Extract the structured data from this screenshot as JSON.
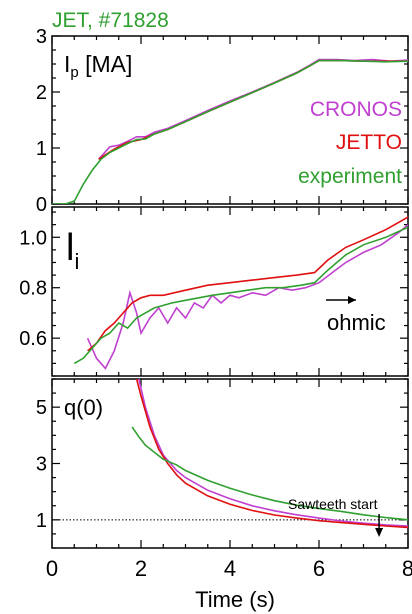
{
  "figure_title": "JET, #71828",
  "colors": {
    "cronos": "#c040d0",
    "jetto": "#e01010",
    "experiment": "#30a030",
    "axis": "#000000",
    "ref": "#000000"
  },
  "chart_data": [
    {
      "type": "line",
      "panel_label": "I",
      "panel_label_sub": "p",
      "panel_label_rest": " [MA]",
      "xlim": [
        0,
        8
      ],
      "ylim": [
        0,
        3
      ],
      "yticks": [
        "0",
        "1",
        "2",
        "3"
      ],
      "legend": [
        "CRONOS",
        "JETTO",
        "experiment"
      ],
      "legend_position": "right",
      "series": [
        {
          "name": "CRONOS",
          "color": "#c040d0",
          "points": [
            [
              1.05,
              0.8
            ],
            [
              1.3,
              1.02
            ],
            [
              1.5,
              1.05
            ],
            [
              1.7,
              1.12
            ],
            [
              1.9,
              1.2
            ],
            [
              2.1,
              1.2
            ],
            [
              2.3,
              1.28
            ],
            [
              2.6,
              1.35
            ],
            [
              3.0,
              1.49
            ],
            [
              3.5,
              1.67
            ],
            [
              4.0,
              1.84
            ],
            [
              4.5,
              2.0
            ],
            [
              5.0,
              2.17
            ],
            [
              5.5,
              2.35
            ],
            [
              5.8,
              2.48
            ],
            [
              6.0,
              2.58
            ],
            [
              6.4,
              2.58
            ],
            [
              6.8,
              2.56
            ],
            [
              7.2,
              2.58
            ],
            [
              7.6,
              2.55
            ],
            [
              8.0,
              2.57
            ]
          ]
        },
        {
          "name": "JETTO",
          "color": "#e01010",
          "points": [
            [
              1.05,
              0.8
            ],
            [
              1.4,
              0.98
            ],
            [
              1.7,
              1.1
            ],
            [
              2.0,
              1.15
            ],
            [
              2.3,
              1.25
            ],
            [
              2.6,
              1.33
            ],
            [
              3.0,
              1.47
            ],
            [
              3.5,
              1.65
            ],
            [
              4.0,
              1.82
            ],
            [
              4.5,
              1.99
            ],
            [
              5.0,
              2.16
            ],
            [
              5.5,
              2.34
            ],
            [
              5.8,
              2.47
            ],
            [
              6.0,
              2.56
            ],
            [
              6.5,
              2.56
            ],
            [
              7.0,
              2.55
            ],
            [
              7.5,
              2.55
            ],
            [
              8.0,
              2.55
            ]
          ]
        },
        {
          "name": "experiment",
          "color": "#30a030",
          "points": [
            [
              0.0,
              0.0
            ],
            [
              0.3,
              0.0
            ],
            [
              0.5,
              0.05
            ],
            [
              0.7,
              0.35
            ],
            [
              0.9,
              0.6
            ],
            [
              1.1,
              0.8
            ],
            [
              1.3,
              0.92
            ],
            [
              1.5,
              1.0
            ],
            [
              1.7,
              1.08
            ],
            [
              1.9,
              1.15
            ],
            [
              2.1,
              1.16
            ],
            [
              2.3,
              1.25
            ],
            [
              2.6,
              1.33
            ],
            [
              3.0,
              1.47
            ],
            [
              3.5,
              1.65
            ],
            [
              4.0,
              1.82
            ],
            [
              4.5,
              1.99
            ],
            [
              5.0,
              2.16
            ],
            [
              5.5,
              2.34
            ],
            [
              5.8,
              2.47
            ],
            [
              6.0,
              2.56
            ],
            [
              6.5,
              2.56
            ],
            [
              7.0,
              2.55
            ],
            [
              7.5,
              2.54
            ],
            [
              8.0,
              2.55
            ]
          ]
        }
      ]
    },
    {
      "type": "line",
      "panel_label": "l",
      "panel_label_sub": "i",
      "panel_label_rest": "",
      "xlim": [
        0,
        8
      ],
      "ylim": [
        0.45,
        1.12
      ],
      "yticks": [
        "0.6",
        "0.8",
        "1.0"
      ],
      "annotation": "ohmic",
      "series": [
        {
          "name": "CRONOS",
          "color": "#c040d0",
          "points": [
            [
              0.8,
              0.6
            ],
            [
              1.0,
              0.52
            ],
            [
              1.2,
              0.48
            ],
            [
              1.4,
              0.55
            ],
            [
              1.6,
              0.66
            ],
            [
              1.75,
              0.78
            ],
            [
              1.9,
              0.7
            ],
            [
              2.0,
              0.62
            ],
            [
              2.2,
              0.68
            ],
            [
              2.4,
              0.72
            ],
            [
              2.6,
              0.66
            ],
            [
              2.8,
              0.72
            ],
            [
              3.0,
              0.68
            ],
            [
              3.2,
              0.74
            ],
            [
              3.4,
              0.72
            ],
            [
              3.6,
              0.77
            ],
            [
              3.8,
              0.74
            ],
            [
              4.0,
              0.77
            ],
            [
              4.2,
              0.76
            ],
            [
              4.5,
              0.78
            ],
            [
              4.8,
              0.77
            ],
            [
              5.1,
              0.8
            ],
            [
              5.4,
              0.79
            ],
            [
              5.7,
              0.8
            ],
            [
              6.0,
              0.82
            ],
            [
              6.3,
              0.86
            ],
            [
              6.6,
              0.9
            ],
            [
              7.0,
              0.94
            ],
            [
              7.4,
              0.97
            ],
            [
              7.8,
              1.02
            ],
            [
              8.0,
              1.05
            ]
          ]
        },
        {
          "name": "JETTO",
          "color": "#e01010",
          "points": [
            [
              0.8,
              0.55
            ],
            [
              1.0,
              0.58
            ],
            [
              1.2,
              0.63
            ],
            [
              1.4,
              0.66
            ],
            [
              1.6,
              0.7
            ],
            [
              1.8,
              0.74
            ],
            [
              2.0,
              0.76
            ],
            [
              2.2,
              0.77
            ],
            [
              2.5,
              0.77
            ],
            [
              3.0,
              0.79
            ],
            [
              3.5,
              0.81
            ],
            [
              4.0,
              0.82
            ],
            [
              4.5,
              0.83
            ],
            [
              5.0,
              0.84
            ],
            [
              5.5,
              0.85
            ],
            [
              5.9,
              0.86
            ],
            [
              6.2,
              0.91
            ],
            [
              6.6,
              0.96
            ],
            [
              7.0,
              0.99
            ],
            [
              7.5,
              1.03
            ],
            [
              8.0,
              1.08
            ]
          ]
        },
        {
          "name": "experiment",
          "color": "#30a030",
          "points": [
            [
              0.5,
              0.5
            ],
            [
              0.7,
              0.52
            ],
            [
              0.9,
              0.56
            ],
            [
              1.1,
              0.6
            ],
            [
              1.3,
              0.62
            ],
            [
              1.5,
              0.66
            ],
            [
              1.7,
              0.64
            ],
            [
              1.9,
              0.68
            ],
            [
              2.1,
              0.7
            ],
            [
              2.3,
              0.72
            ],
            [
              2.5,
              0.73
            ],
            [
              2.7,
              0.74
            ],
            [
              3.0,
              0.75
            ],
            [
              3.3,
              0.76
            ],
            [
              3.6,
              0.77
            ],
            [
              4.0,
              0.78
            ],
            [
              4.4,
              0.79
            ],
            [
              4.8,
              0.8
            ],
            [
              5.2,
              0.8
            ],
            [
              5.6,
              0.81
            ],
            [
              5.9,
              0.82
            ],
            [
              6.2,
              0.87
            ],
            [
              6.6,
              0.93
            ],
            [
              7.0,
              0.97
            ],
            [
              7.5,
              1.0
            ],
            [
              8.0,
              1.04
            ]
          ]
        }
      ]
    },
    {
      "type": "line",
      "panel_label": "q(0)",
      "xlim": [
        0,
        8
      ],
      "ylim": [
        0,
        6
      ],
      "yticks": [
        "1",
        "3",
        "5"
      ],
      "xticks": [
        "0",
        "2",
        "4",
        "6",
        "8"
      ],
      "xlabel": "Time (s)",
      "annotation": "Sawteeth start",
      "annotation_x": 7.35,
      "ref_line_y": 1.0,
      "series": [
        {
          "name": "CRONOS",
          "color": "#c040d0",
          "points": [
            [
              1.95,
              6.0
            ],
            [
              2.1,
              5.0
            ],
            [
              2.3,
              4.0
            ],
            [
              2.5,
              3.3
            ],
            [
              2.8,
              2.75
            ],
            [
              3.0,
              2.5
            ],
            [
              3.5,
              2.05
            ],
            [
              4.0,
              1.75
            ],
            [
              4.5,
              1.5
            ],
            [
              5.0,
              1.32
            ],
            [
              5.5,
              1.18
            ],
            [
              6.0,
              1.06
            ],
            [
              6.5,
              0.96
            ],
            [
              7.0,
              0.88
            ],
            [
              7.5,
              0.82
            ],
            [
              8.0,
              0.78
            ]
          ]
        },
        {
          "name": "JETTO",
          "color": "#e01010",
          "points": [
            [
              1.9,
              6.0
            ],
            [
              2.0,
              5.4
            ],
            [
              2.2,
              4.3
            ],
            [
              2.4,
              3.5
            ],
            [
              2.6,
              3.0
            ],
            [
              2.8,
              2.6
            ],
            [
              3.0,
              2.3
            ],
            [
              3.5,
              1.85
            ],
            [
              4.0,
              1.55
            ],
            [
              4.5,
              1.33
            ],
            [
              5.0,
              1.17
            ],
            [
              5.5,
              1.06
            ],
            [
              6.0,
              0.97
            ],
            [
              6.5,
              0.9
            ],
            [
              7.0,
              0.84
            ],
            [
              7.5,
              0.78
            ],
            [
              8.0,
              0.73
            ]
          ]
        },
        {
          "name": "experiment",
          "color": "#30a030",
          "points": [
            [
              1.8,
              4.3
            ],
            [
              1.95,
              3.95
            ],
            [
              2.1,
              3.65
            ],
            [
              2.3,
              3.4
            ],
            [
              2.5,
              3.15
            ],
            [
              2.8,
              2.95
            ],
            [
              3.0,
              2.75
            ],
            [
              3.5,
              2.4
            ],
            [
              4.0,
              2.12
            ],
            [
              4.5,
              1.88
            ],
            [
              5.0,
              1.68
            ],
            [
              5.5,
              1.52
            ],
            [
              6.0,
              1.4
            ],
            [
              6.5,
              1.3
            ],
            [
              7.0,
              1.18
            ],
            [
              7.5,
              1.08
            ],
            [
              8.0,
              1.0
            ]
          ]
        }
      ]
    }
  ]
}
